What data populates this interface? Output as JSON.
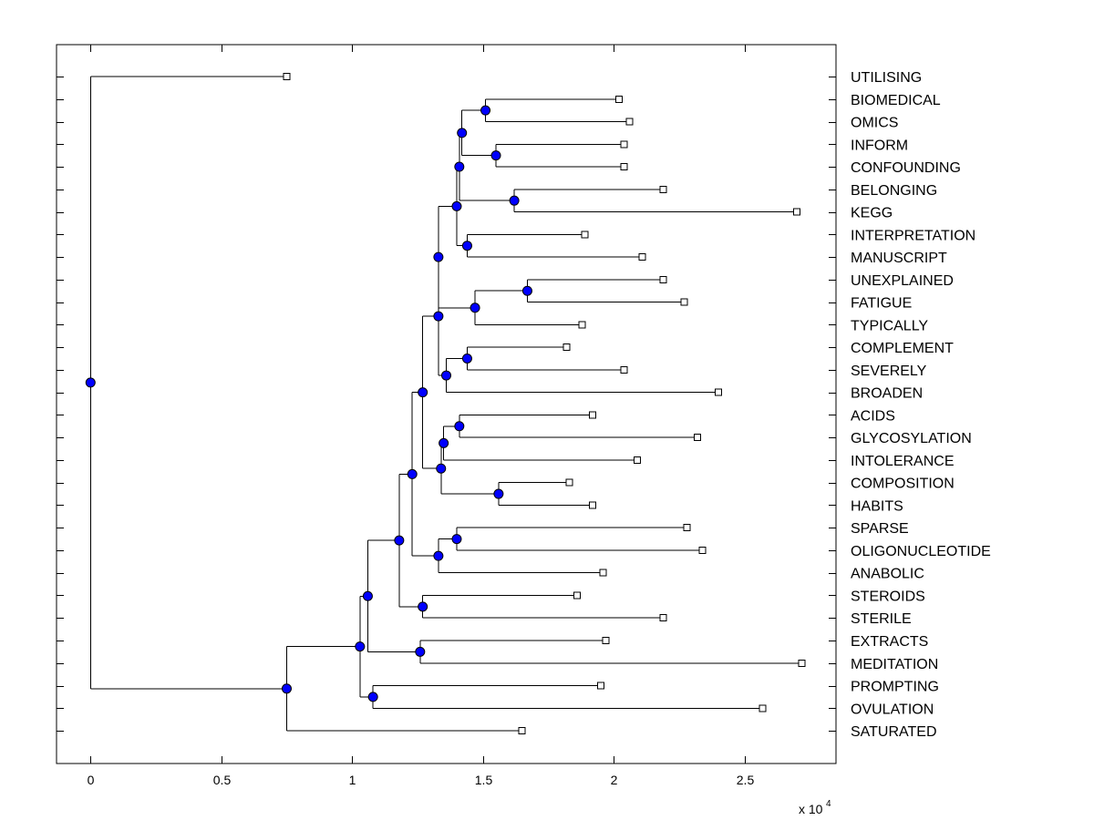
{
  "chart_data": {
    "type": "dendrogram",
    "orientation": "horizontal",
    "x_multiplier_label": "x 10",
    "x_multiplier_exponent": "4",
    "xlim": [
      -0.13,
      2.85
    ],
    "x_ticks": [
      0,
      0.5,
      1,
      1.5,
      2,
      2.5
    ],
    "x_tick_labels": [
      "0",
      "0.5",
      "1",
      "1.5",
      "2",
      "2.5"
    ],
    "colors": {
      "node_fill": "#0000ff",
      "leaf_fill": "#ffffff",
      "line": "#000000"
    },
    "leaves": [
      {
        "name": "UTILISING",
        "x": 0.75
      },
      {
        "name": "BIOMEDICAL",
        "x": 2.02
      },
      {
        "name": "OMICS",
        "x": 2.06
      },
      {
        "name": "INFORM",
        "x": 2.04
      },
      {
        "name": "CONFOUNDING",
        "x": 2.04
      },
      {
        "name": "BELONGING",
        "x": 2.19
      },
      {
        "name": "KEGG",
        "x": 2.7
      },
      {
        "name": "INTERPRETATION",
        "x": 1.89
      },
      {
        "name": "MANUSCRIPT",
        "x": 2.11
      },
      {
        "name": "UNEXPLAINED",
        "x": 2.19
      },
      {
        "name": "FATIGUE",
        "x": 2.27
      },
      {
        "name": "TYPICALLY",
        "x": 1.88
      },
      {
        "name": "COMPLEMENT",
        "x": 1.82
      },
      {
        "name": "SEVERELY",
        "x": 2.04
      },
      {
        "name": "BROADEN",
        "x": 2.4
      },
      {
        "name": "ACIDS",
        "x": 1.92
      },
      {
        "name": "GLYCOSYLATION",
        "x": 2.32
      },
      {
        "name": "INTOLERANCE",
        "x": 2.09
      },
      {
        "name": "COMPOSITION",
        "x": 1.83
      },
      {
        "name": "HABITS",
        "x": 1.92
      },
      {
        "name": "SPARSE",
        "x": 2.28
      },
      {
        "name": "OLIGONUCLEOTIDE",
        "x": 2.34
      },
      {
        "name": "ANABOLIC",
        "x": 1.96
      },
      {
        "name": "STEROIDS",
        "x": 1.86
      },
      {
        "name": "STERILE",
        "x": 2.19
      },
      {
        "name": "EXTRACTS",
        "x": 1.97
      },
      {
        "name": "MEDITATION",
        "x": 2.72
      },
      {
        "name": "PROMPTING",
        "x": 1.95
      },
      {
        "name": "OVULATION",
        "x": 2.57
      },
      {
        "name": "SATURATED",
        "x": 1.65
      }
    ],
    "nodes": [
      {
        "id": "n1",
        "x": 1.51,
        "children": [
          "L1",
          "L2"
        ]
      },
      {
        "id": "n2",
        "x": 1.55,
        "children": [
          "L3",
          "L4"
        ]
      },
      {
        "id": "n3",
        "x": 1.42,
        "children": [
          "n1",
          "n2"
        ]
      },
      {
        "id": "n4",
        "x": 1.62,
        "children": [
          "L5",
          "L6"
        ]
      },
      {
        "id": "n5",
        "x": 1.41,
        "children": [
          "n3",
          "n4"
        ]
      },
      {
        "id": "n6",
        "x": 1.44,
        "children": [
          "L7",
          "L8"
        ]
      },
      {
        "id": "n7",
        "x": 1.4,
        "children": [
          "n5",
          "n6"
        ]
      },
      {
        "id": "n8",
        "x": 1.67,
        "children": [
          "L9",
          "L10"
        ]
      },
      {
        "id": "n9",
        "x": 1.47,
        "children": [
          "n8",
          "L11"
        ]
      },
      {
        "id": "n10",
        "x": 1.33,
        "children": [
          "n7",
          "n9"
        ]
      },
      {
        "id": "n11",
        "x": 1.44,
        "children": [
          "L12",
          "L13"
        ]
      },
      {
        "id": "n12",
        "x": 1.36,
        "children": [
          "n11",
          "L14"
        ]
      },
      {
        "id": "n13",
        "x": 1.33,
        "children": [
          "n10",
          "n12"
        ]
      },
      {
        "id": "n14",
        "x": 1.41,
        "children": [
          "L15",
          "L16"
        ]
      },
      {
        "id": "n15",
        "x": 1.35,
        "children": [
          "n14",
          "L17"
        ]
      },
      {
        "id": "n16",
        "x": 1.56,
        "children": [
          "L18",
          "L19"
        ]
      },
      {
        "id": "n17",
        "x": 1.34,
        "children": [
          "n15",
          "n16"
        ]
      },
      {
        "id": "n18",
        "x": 1.27,
        "children": [
          "n13",
          "n17"
        ]
      },
      {
        "id": "n19",
        "x": 1.4,
        "children": [
          "L20",
          "L21"
        ]
      },
      {
        "id": "n20",
        "x": 1.33,
        "children": [
          "n19",
          "L22"
        ]
      },
      {
        "id": "n21",
        "x": 1.23,
        "children": [
          "n18",
          "n20"
        ]
      },
      {
        "id": "n22",
        "x": 1.27,
        "children": [
          "L23",
          "L24"
        ]
      },
      {
        "id": "n23",
        "x": 1.18,
        "children": [
          "n21",
          "n22"
        ]
      },
      {
        "id": "n24",
        "x": 1.26,
        "children": [
          "L25",
          "L26"
        ]
      },
      {
        "id": "n25",
        "x": 1.06,
        "children": [
          "n23",
          "n24"
        ]
      },
      {
        "id": "n26",
        "x": 1.08,
        "children": [
          "L27",
          "L28"
        ]
      },
      {
        "id": "n27",
        "x": 1.03,
        "children": [
          "n25",
          "n26"
        ]
      },
      {
        "id": "n28",
        "x": 0.75,
        "children": [
          "n27",
          "L29"
        ]
      },
      {
        "id": "n29",
        "x": 0.0,
        "children": [
          "L0",
          "n28"
        ]
      }
    ]
  }
}
